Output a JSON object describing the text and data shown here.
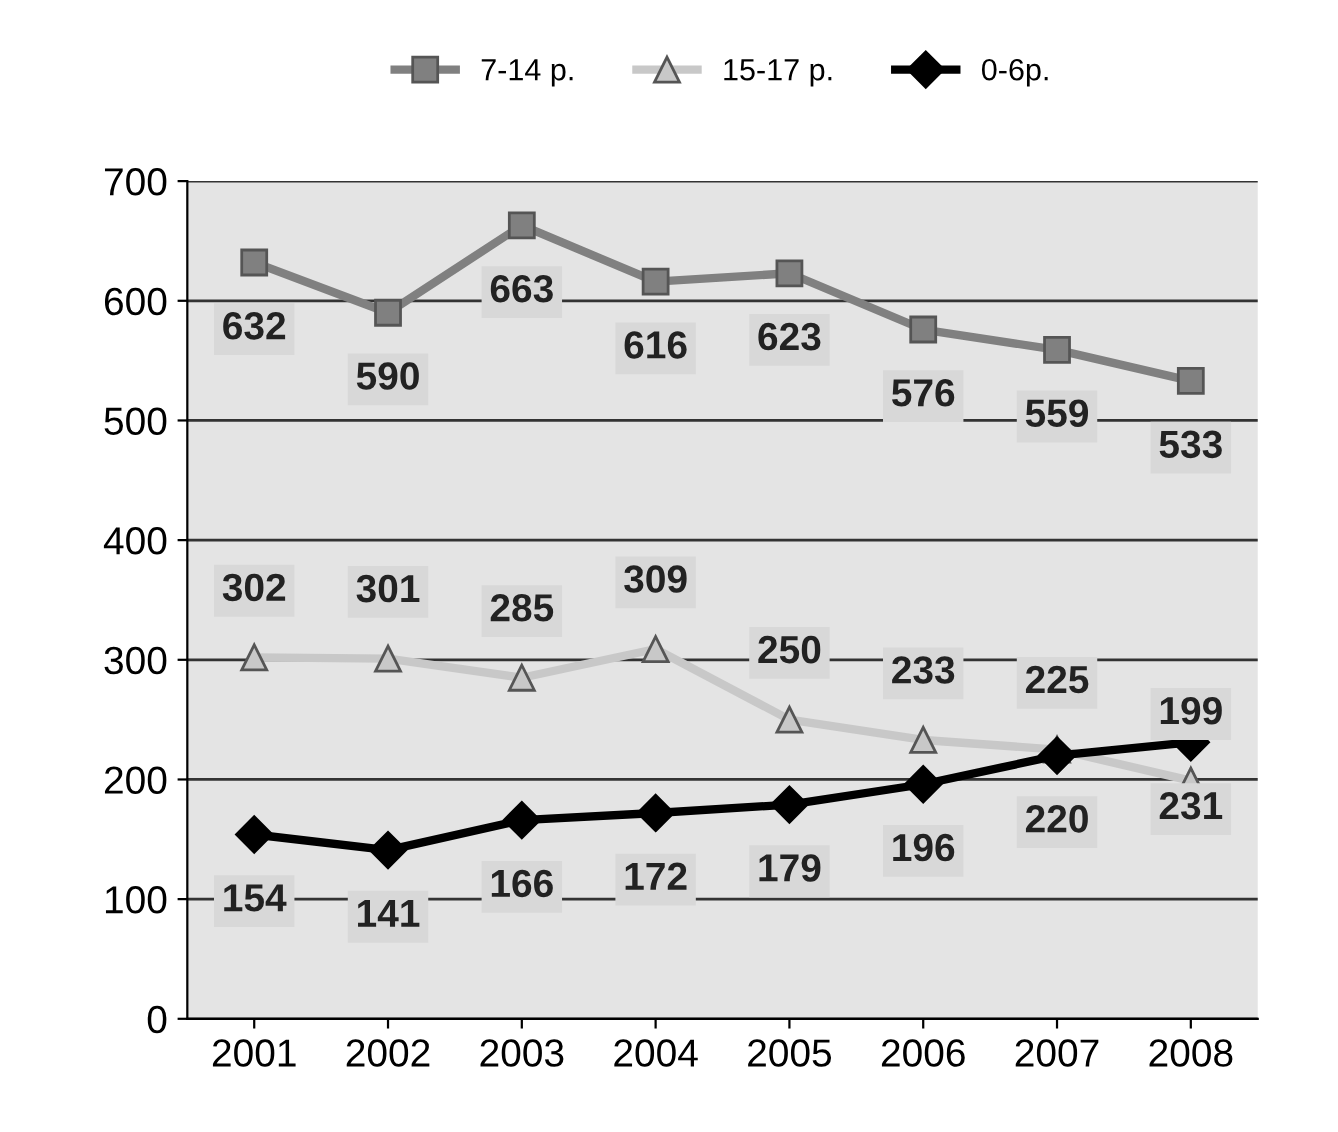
{
  "chart_data": {
    "type": "line",
    "categories": [
      "2001",
      "2002",
      "2003",
      "2004",
      "2005",
      "2006",
      "2007",
      "2008"
    ],
    "series": [
      {
        "name": "7-14 р.",
        "color": "#808080",
        "marker": "square",
        "values": [
          632,
          590,
          663,
          616,
          623,
          576,
          559,
          533
        ]
      },
      {
        "name": "15-17 р.",
        "color": "#c8c8c8",
        "marker": "triangle",
        "values": [
          302,
          301,
          285,
          309,
          250,
          233,
          225,
          199
        ]
      },
      {
        "name": "0-6р.",
        "color": "#000000",
        "marker": "diamond",
        "values": [
          154,
          141,
          166,
          172,
          179,
          196,
          220,
          231
        ]
      }
    ],
    "ylim": [
      0,
      700
    ],
    "yticks": [
      0,
      100,
      200,
      300,
      400,
      500,
      600,
      700
    ],
    "grid": "y",
    "legend": "top",
    "data_labels": true,
    "line_style": "solid"
  }
}
